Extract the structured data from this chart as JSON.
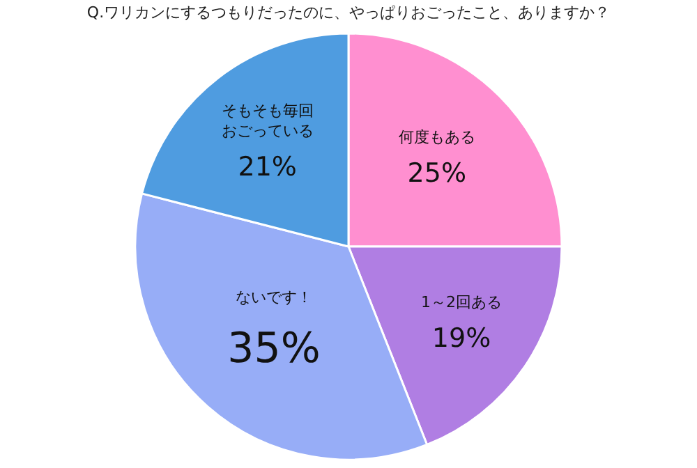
{
  "chart_data": {
    "type": "pie",
    "title": "Q.ワリカンにするつもりだったのに、やっぱりおごったこと、ありますか？",
    "categories": [
      "何度もある",
      "1～2回ある",
      "ないです！",
      "そもそも毎回おごっている"
    ],
    "values": [
      25,
      19,
      35,
      21
    ],
    "value_labels": [
      "25%",
      "19%",
      "35%",
      "21%"
    ],
    "colors": [
      "#ff8fd0",
      "#b07ee3",
      "#97adf7",
      "#4f9ce0"
    ],
    "legend": false
  }
}
